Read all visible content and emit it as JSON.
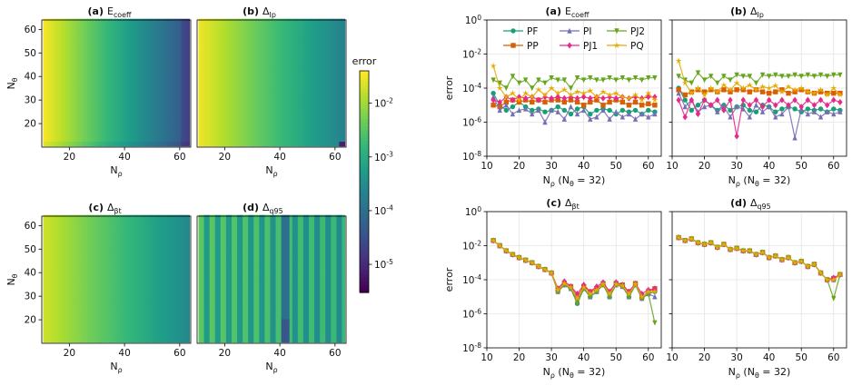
{
  "heatmaps": {
    "panels": [
      {
        "tag": "(a)",
        "title": "E_coeff"
      },
      {
        "tag": "(b)",
        "title": "Δ_Ip"
      },
      {
        "tag": "(c)",
        "title": "Δ_βt"
      },
      {
        "tag": "(d)",
        "title": "Δ_q95"
      }
    ],
    "x_label": "N_ρ",
    "y_label": "N_θ",
    "colorbar": {
      "label": "error",
      "tick_labels": [
        "10^-2",
        "10^-3",
        "10^-4",
        "10^-5"
      ]
    }
  },
  "chart_data": [
    {
      "type": "heatmap",
      "title": "(a) E_coeff",
      "xlabel": "N_ρ",
      "ylabel": "N_θ",
      "xlim": [
        10,
        64
      ],
      "ylim": [
        10,
        64
      ],
      "xticks": [
        20,
        40,
        60
      ],
      "yticks": [
        20,
        30,
        40,
        50,
        60
      ],
      "color_scale": "viridis",
      "log_color": true,
      "clim": [
        3e-06,
        0.04
      ],
      "pattern": "log10(error) ≈ -1.45 - 0.058*(N_ρ - 11); lower row band (N_θ < 13) slightly lower; darkest near N_ρ≈62"
    },
    {
      "type": "heatmap",
      "title": "(b) Δ_Ip",
      "xlabel": "N_ρ",
      "xlim": [
        10,
        64
      ],
      "ylim": [
        10,
        64
      ],
      "xticks": [
        20,
        40,
        60
      ],
      "color_scale": "viridis",
      "log_color": true,
      "pattern": "yellow at low N_ρ decreasing to teal (~1e-3.6) at high N_ρ; dark cell at bottom-right corner"
    },
    {
      "type": "heatmap",
      "title": "(c) Δ_βt",
      "xlabel": "N_ρ",
      "ylabel": "N_θ",
      "xlim": [
        10,
        64
      ],
      "ylim": [
        10,
        64
      ],
      "xticks": [
        20,
        40,
        60
      ],
      "yticks": [
        20,
        30,
        40,
        50,
        60
      ],
      "color_scale": "viridis",
      "log_color": true,
      "pattern": "smooth decrease from ~2e-2 (N_ρ=11) to ~1e-3.5 (N_ρ=63), constant in N_θ"
    },
    {
      "type": "heatmap",
      "title": "(d) Δ_q95",
      "xlabel": "N_ρ",
      "xlim": [
        10,
        64
      ],
      "ylim": [
        10,
        64
      ],
      "xticks": [
        20,
        40,
        60
      ],
      "color_scale": "viridis",
      "log_color": true,
      "pattern": "vertical stripes alternating between ~1e-2.5 and ~1e-3.3; darkest stripe near N_ρ≈42"
    },
    {
      "type": "line",
      "title": "(a) E_coeff",
      "xlabel": "N_ρ (N_θ = 32)",
      "ylabel": "error",
      "log_y": true,
      "xlim": [
        10,
        64
      ],
      "ylim": [
        1e-08,
        1
      ],
      "xticks": [
        10,
        20,
        30,
        40,
        50,
        60
      ],
      "yticks": [
        "10^0",
        "10^-2",
        "10^-4",
        "10^-6",
        "10^-8"
      ],
      "legend": "top",
      "x": [
        12,
        14,
        16,
        18,
        20,
        22,
        24,
        26,
        28,
        30,
        32,
        34,
        36,
        38,
        40,
        42,
        44,
        46,
        48,
        50,
        52,
        54,
        56,
        58,
        60,
        62
      ],
      "series": [
        {
          "name": "PF",
          "color": "#1b9e77",
          "marker": "circle",
          "values": [
            5e-05,
            1e-05,
            5e-06,
            8e-06,
            1.5e-05,
            8e-06,
            5e-06,
            6e-06,
            4e-06,
            5e-06,
            8e-06,
            5e-06,
            3e-06,
            6e-06,
            8e-06,
            3e-06,
            5e-06,
            6e-06,
            5e-06,
            3e-06,
            5e-06,
            4e-06,
            5e-06,
            3e-06,
            5e-06,
            4e-06
          ]
        },
        {
          "name": "PP",
          "color": "#d95f02",
          "marker": "square",
          "values": [
            1e-05,
            8e-06,
            1.5e-05,
            2e-05,
            1.5e-05,
            2e-05,
            1.5e-05,
            2e-05,
            1.5e-05,
            2e-05,
            2e-05,
            1.5e-05,
            2e-05,
            1.5e-05,
            1e-05,
            1.5e-05,
            2e-05,
            1e-05,
            1.5e-05,
            2e-05,
            1.5e-05,
            1e-05,
            1.5e-05,
            1e-05,
            1.2e-05,
            1e-05
          ]
        },
        {
          "name": "PI",
          "color": "#7570b3",
          "marker": "triangle-up",
          "values": [
            3e-05,
            5e-06,
            1e-05,
            3e-06,
            5e-06,
            6e-06,
            3e-06,
            5e-06,
            1e-06,
            5e-06,
            4e-06,
            1.5e-06,
            8e-06,
            3e-06,
            5e-06,
            1.5e-06,
            2e-06,
            5e-06,
            1.5e-06,
            4e-06,
            2e-06,
            3e-06,
            1.5e-06,
            3e-06,
            2e-06,
            3e-06
          ]
        },
        {
          "name": "PJ1",
          "color": "#e7298a",
          "marker": "diamond",
          "values": [
            2e-05,
            1.5e-05,
            3e-05,
            2e-05,
            3e-05,
            2.5e-05,
            3e-05,
            2e-05,
            3e-05,
            2.5e-05,
            3e-05,
            2.5e-05,
            3e-05,
            2.5e-05,
            3e-05,
            2.5e-05,
            3e-05,
            2.5e-05,
            3e-05,
            2.5e-05,
            3e-05,
            2.5e-05,
            3e-05,
            2.5e-05,
            3e-05,
            3e-05
          ]
        },
        {
          "name": "PJ2",
          "color": "#66a61e",
          "marker": "triangle-down",
          "values": [
            0.0003,
            0.0002,
            0.0001,
            0.0005,
            0.0002,
            0.0003,
            0.0001,
            0.0003,
            0.0002,
            0.0004,
            0.0003,
            0.0003,
            0.0001,
            0.0004,
            0.0003,
            0.0004,
            0.0003,
            0.0003,
            0.0004,
            0.0003,
            0.0004,
            0.0003,
            0.0004,
            0.0003,
            0.0004,
            0.0004
          ]
        },
        {
          "name": "PQ",
          "color": "#e6ab02",
          "marker": "star",
          "values": [
            0.002,
            0.0001,
            3e-05,
            5e-05,
            2e-05,
            5e-05,
            3e-05,
            8e-05,
            4e-05,
            0.0001,
            5e-05,
            8e-05,
            4e-05,
            6e-05,
            5e-05,
            7e-05,
            3e-05,
            6e-05,
            4e-05,
            5e-05,
            3e-05,
            2.5e-05,
            4e-05,
            2e-05,
            5e-05,
            2e-05
          ]
        }
      ]
    },
    {
      "type": "line",
      "title": "(b) Δ_Ip",
      "xlabel": "N_ρ (N_θ = 32)",
      "log_y": true,
      "xlim": [
        10,
        64
      ],
      "ylim": [
        1e-08,
        1
      ],
      "xticks": [
        10,
        20,
        30,
        40,
        50,
        60
      ],
      "x": [
        12,
        14,
        16,
        18,
        20,
        22,
        24,
        26,
        28,
        30,
        32,
        34,
        36,
        38,
        40,
        42,
        44,
        46,
        48,
        50,
        52,
        54,
        56,
        58,
        60,
        62
      ],
      "series": [
        {
          "name": "PF",
          "values": [
            0.0001,
            2e-05,
            5e-06,
            1e-05,
            2e-05,
            1e-05,
            5e-06,
            1e-05,
            5e-06,
            8e-06,
            1e-05,
            5e-06,
            4e-06,
            1e-05,
            8e-06,
            4e-06,
            6e-06,
            8e-06,
            6e-06,
            4e-06,
            6e-06,
            5e-06,
            6e-06,
            4e-06,
            6e-06,
            5e-06
          ]
        },
        {
          "name": "PP",
          "values": [
            8e-05,
            4e-05,
            6e-05,
            8e-05,
            6e-05,
            8e-05,
            6e-05,
            8e-05,
            6e-05,
            8e-05,
            8e-05,
            6e-05,
            8e-05,
            6e-05,
            5e-05,
            6e-05,
            8e-05,
            5e-05,
            6e-05,
            8e-05,
            6e-05,
            5e-05,
            6e-05,
            5e-05,
            5e-05,
            5e-05
          ]
        },
        {
          "name": "PI",
          "values": [
            5e-05,
            8e-06,
            2e-05,
            4e-06,
            8e-06,
            1e-05,
            4e-06,
            8e-06,
            2e-06,
            8e-06,
            6e-06,
            2e-06,
            1e-05,
            4e-06,
            8e-06,
            2e-06,
            3e-06,
            8e-06,
            1.2e-07,
            6e-06,
            3e-06,
            4e-06,
            2e-06,
            4e-06,
            3e-06,
            4e-06
          ]
        },
        {
          "name": "PJ1",
          "values": [
            2e-05,
            2e-06,
            2e-05,
            3e-06,
            2e-05,
            1e-05,
            2e-05,
            5e-06,
            2e-05,
            1.5e-07,
            2e-05,
            1e-05,
            2e-05,
            8e-06,
            2e-05,
            1e-05,
            2e-05,
            1e-05,
            2e-05,
            8e-06,
            2e-05,
            1e-05,
            2e-05,
            1e-05,
            2e-05,
            1.5e-05
          ]
        },
        {
          "name": "PJ2",
          "values": [
            0.0005,
            0.0003,
            0.0002,
            0.0008,
            0.0003,
            0.0005,
            0.0002,
            0.0005,
            0.0003,
            0.0006,
            0.0005,
            0.0005,
            0.0002,
            0.0006,
            0.0005,
            0.0006,
            0.0005,
            0.0005,
            0.0006,
            0.0005,
            0.0006,
            0.0005,
            0.0006,
            0.0005,
            0.0006,
            0.0006
          ]
        },
        {
          "name": "PQ",
          "values": [
            0.004,
            0.0002,
            5e-05,
            0.0001,
            4e-05,
            0.0001,
            6e-05,
            0.00015,
            8e-05,
            0.0002,
            0.0001,
            0.00015,
            8e-05,
            0.00012,
            0.0001,
            0.00014,
            6e-05,
            0.00012,
            8e-05,
            0.0001,
            6e-05,
            5e-05,
            8e-05,
            4e-05,
            0.0001,
            4e-05
          ]
        }
      ]
    },
    {
      "type": "line",
      "title": "(c) Δ_βt",
      "xlabel": "N_ρ (N_θ = 32)",
      "ylabel": "error",
      "log_y": true,
      "xlim": [
        10,
        64
      ],
      "ylim": [
        1e-08,
        1
      ],
      "xticks": [
        10,
        20,
        30,
        40,
        50,
        60
      ],
      "x": [
        12,
        14,
        16,
        18,
        20,
        22,
        24,
        26,
        28,
        30,
        32,
        34,
        36,
        38,
        40,
        42,
        44,
        46,
        48,
        50,
        52,
        54,
        56,
        58,
        60,
        62
      ],
      "series": [
        {
          "name": "PF",
          "values": [
            0.02,
            0.01,
            0.005,
            0.003,
            0.002,
            0.0014,
            0.001,
            0.0006,
            0.0004,
            0.00025,
            2e-05,
            5e-05,
            3e-05,
            4e-06,
            3e-05,
            1e-05,
            2e-05,
            5e-05,
            1e-05,
            5e-05,
            4e-05,
            1e-05,
            5e-05,
            8e-06,
            1.5e-05,
            2e-05
          ]
        },
        {
          "name": "PP",
          "values": [
            0.02,
            0.01,
            0.005,
            0.003,
            0.002,
            0.0014,
            0.001,
            0.0006,
            0.0004,
            0.00025,
            3e-05,
            6e-05,
            4e-05,
            1e-05,
            4e-05,
            2e-05,
            3e-05,
            6e-05,
            2e-05,
            6e-05,
            5e-05,
            2e-05,
            6e-05,
            1e-05,
            2e-05,
            3e-05
          ]
        },
        {
          "name": "PI",
          "values": [
            0.02,
            0.01,
            0.005,
            0.003,
            0.002,
            0.0014,
            0.001,
            0.0006,
            0.0004,
            0.00025,
            2e-05,
            5e-05,
            3e-05,
            5e-06,
            3e-05,
            1e-05,
            2e-05,
            5e-05,
            1e-05,
            5e-05,
            4e-05,
            1e-05,
            5e-05,
            8e-06,
            1.5e-05,
            1e-05
          ]
        },
        {
          "name": "PJ1",
          "values": [
            0.02,
            0.01,
            0.005,
            0.003,
            0.002,
            0.0014,
            0.001,
            0.0006,
            0.0004,
            0.00025,
            3e-05,
            8e-05,
            4e-05,
            1.5e-05,
            5e-05,
            2e-05,
            4e-05,
            7e-05,
            2e-05,
            7e-05,
            5e-05,
            2e-05,
            6e-05,
            1.5e-05,
            2.5e-05,
            3e-05
          ]
        },
        {
          "name": "PJ2",
          "values": [
            0.02,
            0.01,
            0.005,
            0.003,
            0.002,
            0.0014,
            0.001,
            0.0006,
            0.0004,
            0.00025,
            2e-05,
            5e-05,
            3e-05,
            4e-06,
            3e-05,
            1e-05,
            2e-05,
            5e-05,
            1e-05,
            5e-05,
            4e-05,
            1e-05,
            5e-05,
            8e-06,
            1.5e-05,
            3e-07
          ]
        },
        {
          "name": "PQ",
          "values": [
            0.02,
            0.01,
            0.005,
            0.003,
            0.002,
            0.0014,
            0.001,
            0.0006,
            0.0004,
            0.00025,
            2.5e-05,
            6e-05,
            3.5e-05,
            8e-06,
            3.5e-05,
            1.5e-05,
            2.5e-05,
            5.5e-05,
            1.5e-05,
            5.5e-05,
            4.5e-05,
            1.5e-05,
            5.5e-05,
            1e-05,
            2e-05,
            2e-05
          ]
        }
      ]
    },
    {
      "type": "line",
      "title": "(d) Δ_q95",
      "xlabel": "N_ρ (N_θ = 32)",
      "log_y": true,
      "xlim": [
        10,
        64
      ],
      "ylim": [
        1e-08,
        1
      ],
      "xticks": [
        10,
        20,
        30,
        40,
        50,
        60
      ],
      "x": [
        12,
        14,
        16,
        18,
        20,
        22,
        24,
        26,
        28,
        30,
        32,
        34,
        36,
        38,
        40,
        42,
        44,
        46,
        48,
        50,
        52,
        54,
        56,
        58,
        60,
        62
      ],
      "series": [
        {
          "name": "PF",
          "values": [
            0.03,
            0.02,
            0.025,
            0.015,
            0.012,
            0.015,
            0.008,
            0.012,
            0.006,
            0.007,
            0.005,
            0.005,
            0.003,
            0.004,
            0.002,
            0.0025,
            0.0015,
            0.002,
            0.001,
            0.0012,
            0.0006,
            0.0008,
            0.00025,
            0.0001,
            0.0001,
            0.0002
          ]
        },
        {
          "name": "PP",
          "values": [
            0.03,
            0.02,
            0.025,
            0.015,
            0.012,
            0.015,
            0.008,
            0.012,
            0.006,
            0.007,
            0.005,
            0.005,
            0.003,
            0.004,
            0.002,
            0.0025,
            0.0015,
            0.002,
            0.001,
            0.0012,
            0.0006,
            0.0008,
            0.00025,
            0.0001,
            0.00012,
            0.0002
          ]
        },
        {
          "name": "PI",
          "values": [
            0.03,
            0.02,
            0.025,
            0.015,
            0.012,
            0.015,
            0.008,
            0.012,
            0.006,
            0.007,
            0.005,
            0.005,
            0.003,
            0.004,
            0.002,
            0.0025,
            0.0015,
            0.002,
            0.001,
            0.0012,
            0.0006,
            0.0008,
            0.00025,
            0.0001,
            0.0001,
            0.0002
          ]
        },
        {
          "name": "PJ1",
          "values": [
            0.03,
            0.02,
            0.025,
            0.015,
            0.012,
            0.015,
            0.008,
            0.012,
            0.006,
            0.007,
            0.005,
            0.005,
            0.003,
            0.004,
            0.002,
            0.0025,
            0.0015,
            0.002,
            0.001,
            0.0012,
            0.0006,
            0.0008,
            0.00025,
            0.0001,
            0.00013,
            0.0002
          ]
        },
        {
          "name": "PJ2",
          "values": [
            0.03,
            0.02,
            0.025,
            0.015,
            0.012,
            0.015,
            0.008,
            0.012,
            0.006,
            0.007,
            0.005,
            0.005,
            0.003,
            0.004,
            0.002,
            0.0025,
            0.0015,
            0.002,
            0.001,
            0.0012,
            0.0006,
            0.0008,
            0.00025,
            0.0001,
            8e-06,
            0.0002
          ]
        },
        {
          "name": "PQ",
          "values": [
            0.03,
            0.02,
            0.025,
            0.015,
            0.012,
            0.015,
            0.008,
            0.012,
            0.006,
            0.007,
            0.005,
            0.005,
            0.003,
            0.004,
            0.002,
            0.0025,
            0.0015,
            0.002,
            0.001,
            0.0012,
            0.0006,
            0.0008,
            0.00025,
            0.0001,
            0.0001,
            0.0002
          ]
        }
      ]
    }
  ]
}
